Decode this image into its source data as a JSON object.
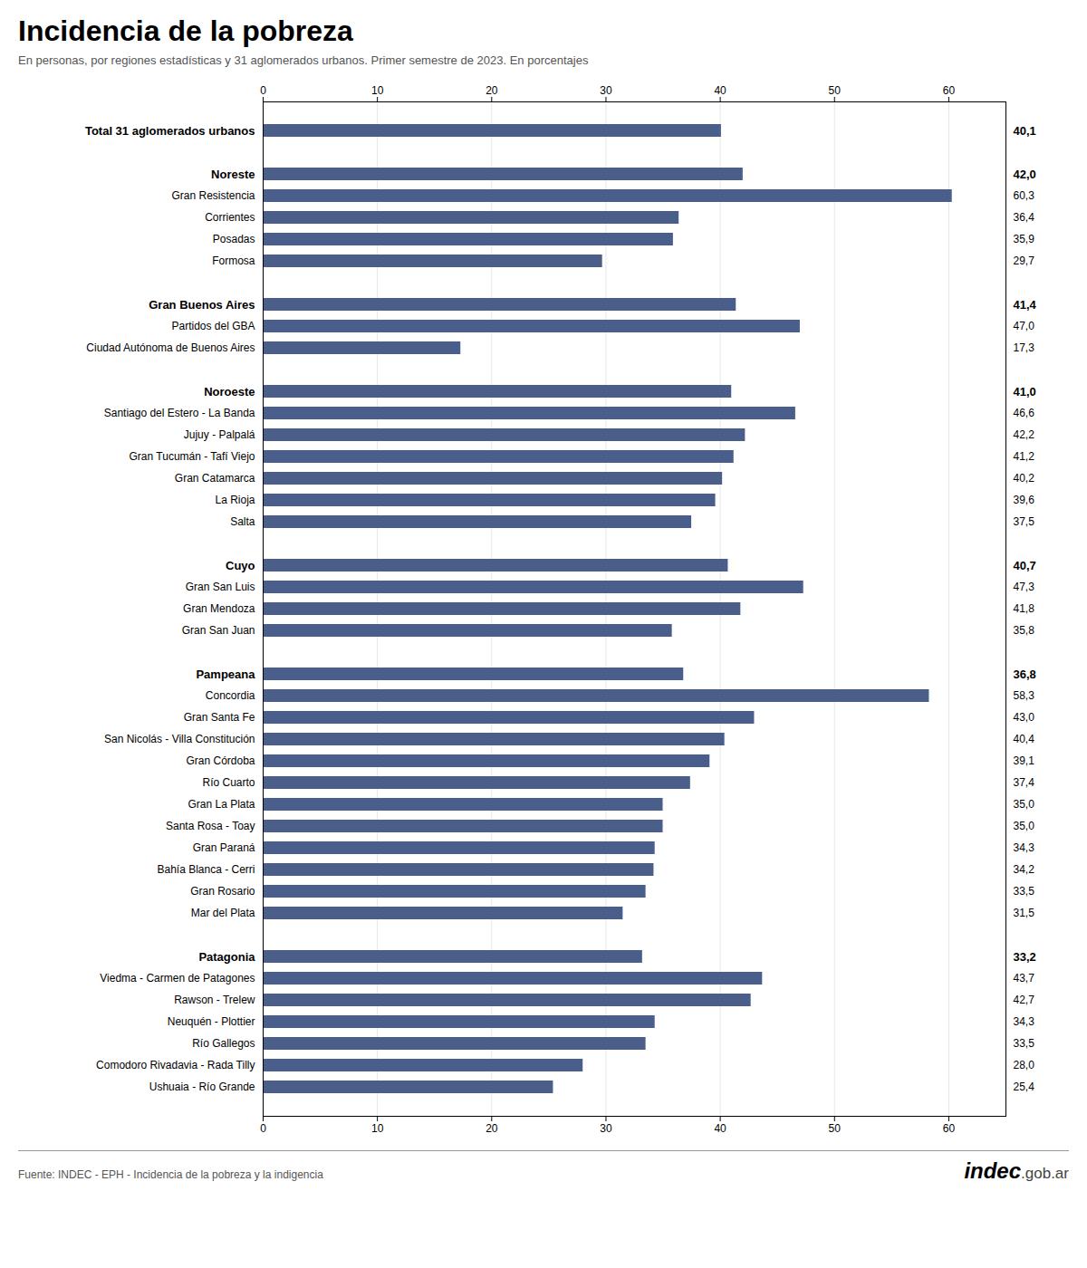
{
  "chart_data": {
    "type": "bar",
    "orientation": "horizontal",
    "title": "Incidencia de la pobreza",
    "subtitle": "En personas, por regiones estadísticas y 31 aglomerados urbanos. Primer semestre de 2023. En porcentajes",
    "source": "Fuente: INDEC - EPH - Incidencia de la pobreza y la indigencia",
    "annotations": [
      "indec",
      ".gob.ar"
    ],
    "categories": [
      "Total 31 aglomerados urbanos",
      null,
      "Noreste",
      "Gran Resistencia",
      "Corrientes",
      "Posadas",
      "Formosa",
      null,
      "Gran Buenos Aires",
      "Partidos del GBA",
      "Ciudad Autónoma de Buenos Aires",
      null,
      "Noroeste",
      "Santiago del Estero - La Banda",
      "Jujuy - Palpalá",
      "Gran Tucumán - Tafí Viejo",
      "Gran Catamarca",
      "La Rioja",
      "Salta",
      null,
      "Cuyo",
      "Gran San Luis",
      "Gran Mendoza",
      "Gran San Juan",
      null,
      "Pampeana",
      "Concordia",
      "Gran Santa Fe",
      "San Nicolás - Villa Constitución",
      "Gran Córdoba",
      "Río Cuarto",
      "Gran La Plata",
      "Santa Rosa - Toay",
      "Gran Paraná",
      "Bahía Blanca - Cerri",
      "Gran Rosario",
      "Mar del Plata",
      null,
      "Patagonia",
      "Viedma - Carmen de Patagones",
      "Rawson - Trelew",
      "Neuquén - Plottier",
      "Río Gallegos",
      "Comodoro Rivadavia - Rada Tilly",
      "Ushuaia - Río Grande"
    ],
    "values": [
      40.1,
      null,
      42.0,
      60.3,
      36.4,
      35.9,
      29.7,
      null,
      41.4,
      47.0,
      17.3,
      null,
      41.0,
      46.6,
      42.2,
      41.2,
      40.2,
      39.6,
      37.5,
      null,
      40.7,
      47.3,
      41.8,
      35.8,
      null,
      36.8,
      58.3,
      43.0,
      40.4,
      39.1,
      37.4,
      35.0,
      35.0,
      34.3,
      34.2,
      33.5,
      31.5,
      null,
      33.2,
      43.7,
      42.7,
      34.3,
      33.5,
      28.0,
      25.4
    ],
    "value_labels": [
      "40,1",
      null,
      "42,0",
      "60,3",
      "36,4",
      "35,9",
      "29,7",
      null,
      "41,4",
      "47,0",
      "17,3",
      null,
      "41,0",
      "46,6",
      "42,2",
      "41,2",
      "40,2",
      "39,6",
      "37,5",
      null,
      "40,7",
      "47,3",
      "41,8",
      "35,8",
      null,
      "36,8",
      "58,3",
      "43,0",
      "40,4",
      "39,1",
      "37,4",
      "35,0",
      "35,0",
      "34,3",
      "34,2",
      "33,5",
      "31,5",
      null,
      "33,2",
      "43,7",
      "42,7",
      "34,3",
      "33,5",
      "28,0",
      "25,4"
    ],
    "data_labels": true,
    "color": "#4a5e8c",
    "xlim": [
      0,
      65
    ],
    "xticks": [
      0,
      10,
      20,
      30,
      40,
      50,
      60
    ],
    "grid": true
  }
}
